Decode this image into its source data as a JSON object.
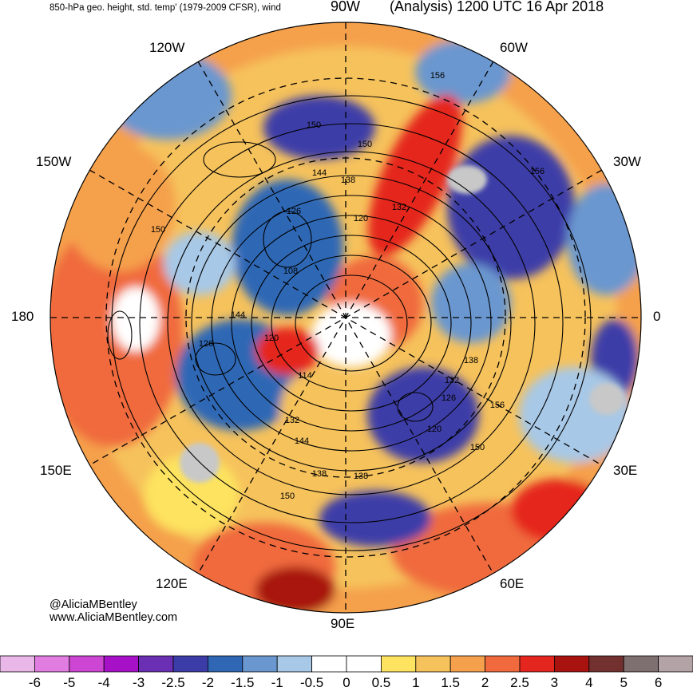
{
  "header": {
    "subtitle": "850-hPa geo. height, std. temp' (1979-2009 CFSR), wind",
    "top_label": "90W",
    "analysis_title": "(Analysis) 1200 UTC 16 Apr 2018"
  },
  "longitude_labels": {
    "w120": "120W",
    "w60": "60W",
    "w150": "150W",
    "w30": "30W",
    "lon180": "180",
    "lon0": "0",
    "e150": "150E",
    "e30": "30E",
    "e120": "120E",
    "e60": "60E",
    "e90": "90E"
  },
  "contour_labels": [
    "156",
    "150",
    "144",
    "138",
    "126",
    "120",
    "132",
    "108",
    "144",
    "126",
    "120",
    "114",
    "132",
    "138",
    "126",
    "120",
    "132",
    "138",
    "150",
    "156",
    "150",
    "144",
    "138",
    "150",
    "156",
    "150"
  ],
  "credits": {
    "handle": "@AliciaMBentley",
    "website": "www.AliciaMBentley.com"
  },
  "colorbar": {
    "ticks": [
      "-6",
      "-5",
      "-4",
      "-3",
      "-2.5",
      "-2",
      "-1.5",
      "-1",
      "-0.5",
      "0",
      "0.5",
      "1",
      "1.5",
      "2",
      "2.5",
      "3",
      "4",
      "5",
      "6"
    ],
    "colors": [
      "#e9b7e8",
      "#e17de0",
      "#cd46d3",
      "#a611c7",
      "#6a2fb2",
      "#3c3ca8",
      "#2f67b5",
      "#6a97cf",
      "#a7c8e6",
      "#ffffff",
      "#ffffff",
      "#fde35f",
      "#f6c25c",
      "#f5a04c",
      "#f06a3d",
      "#e5261f",
      "#a8120f",
      "#72312e",
      "#7e6f70",
      "#b4a3a6"
    ]
  }
}
